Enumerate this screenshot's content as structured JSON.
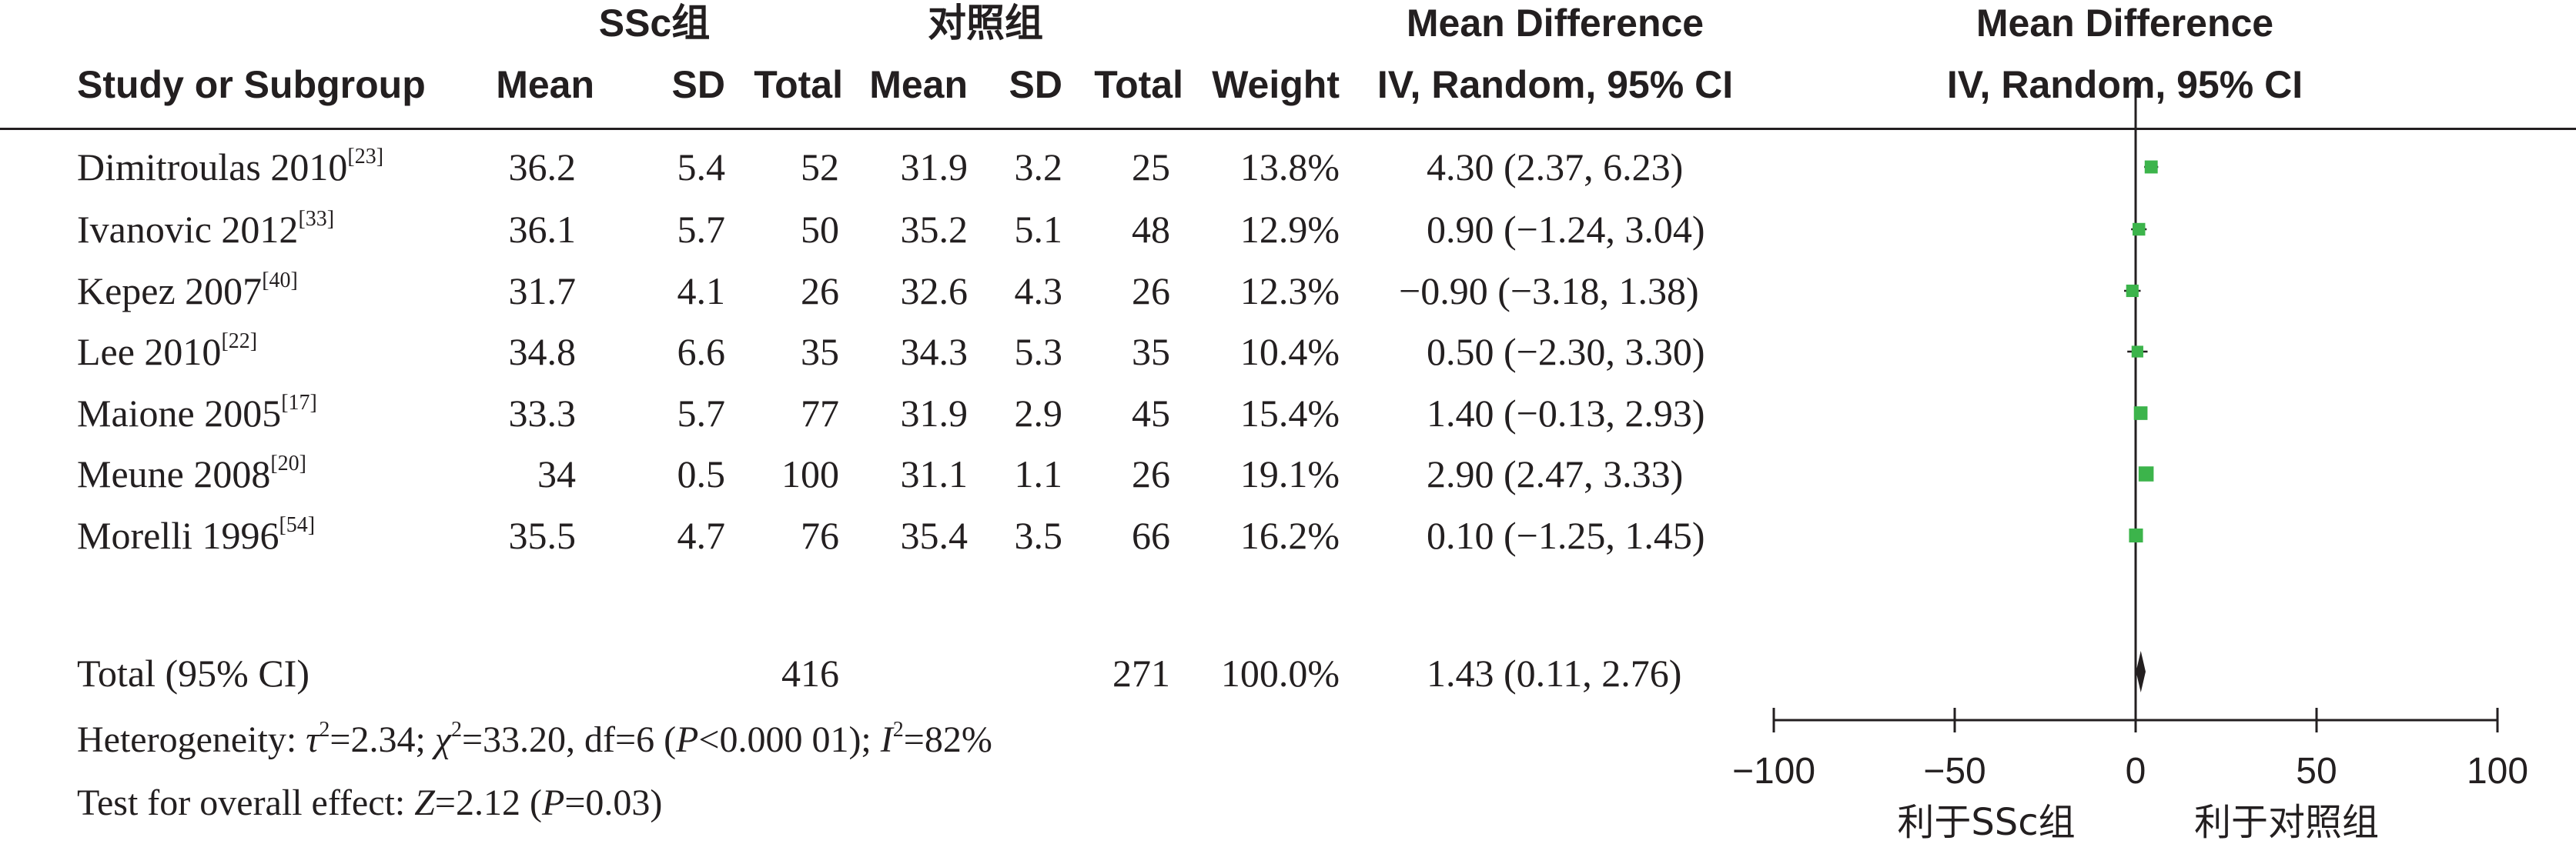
{
  "headers": {
    "group1": "SSc组",
    "group2": "对照组",
    "md_title": "Mean Difference",
    "md_method": "IV, Random, 95% CI",
    "plot_title": "Mean Difference",
    "plot_method": "IV, Random, 95% CI",
    "study": "Study or Subgroup",
    "mean1": "Mean",
    "sd1": "SD",
    "total1": "Total",
    "mean2": "Mean",
    "sd2": "SD",
    "total2": "Total",
    "weight": "Weight"
  },
  "studies": [
    {
      "name": "Dimitroulas 2010",
      "ref": "[23]",
      "mean1": "36.2",
      "sd1": "5.4",
      "total1": "52",
      "mean2": "31.9",
      "sd2": "3.2",
      "total2": "25",
      "weight": "13.8%",
      "ci": "4.30 (2.37, 6.23)"
    },
    {
      "name": "Ivanovic 2012",
      "ref": "[33]",
      "mean1": "36.1",
      "sd1": "5.7",
      "total1": "50",
      "mean2": "35.2",
      "sd2": "5.1",
      "total2": "48",
      "weight": "12.9%",
      "ci": "0.90 (−1.24, 3.04)"
    },
    {
      "name": "Kepez 2007",
      "ref": "[40]",
      "mean1": "31.7",
      "sd1": "4.1",
      "total1": "26",
      "mean2": "32.6",
      "sd2": "4.3",
      "total2": "26",
      "weight": "12.3%",
      "ci": "−0.90 (−3.18, 1.38)"
    },
    {
      "name": "Lee 2010",
      "ref": "[22]",
      "mean1": "34.8",
      "sd1": "6.6",
      "total1": "35",
      "mean2": "34.3",
      "sd2": "5.3",
      "total2": "35",
      "weight": "10.4%",
      "ci": "0.50 (−2.30, 3.30)"
    },
    {
      "name": "Maione 2005",
      "ref": "[17]",
      "mean1": "33.3",
      "sd1": "5.7",
      "total1": "77",
      "mean2": "31.9",
      "sd2": "2.9",
      "total2": "45",
      "weight": "15.4%",
      "ci": "1.40 (−0.13, 2.93)"
    },
    {
      "name": "Meune 2008",
      "ref": "[20]",
      "mean1": "34",
      "sd1": "0.5",
      "total1": "100",
      "mean2": "31.1",
      "sd2": "1.1",
      "total2": "26",
      "weight": "19.1%",
      "ci": "2.90 (2.47, 3.33)"
    },
    {
      "name": "Morelli 1996",
      "ref": "[54]",
      "mean1": "35.5",
      "sd1": "4.7",
      "total1": "76",
      "mean2": "35.4",
      "sd2": "3.5",
      "total2": "66",
      "weight": "16.2%",
      "ci": "0.10 (−1.25, 1.45)"
    }
  ],
  "total": {
    "label": "Total (95% CI)",
    "total1": "416",
    "total2": "271",
    "weight": "100.0%",
    "ci": "1.43 (0.11, 2.76)"
  },
  "heterogeneity": {
    "label": "Heterogeneity: ",
    "tau2": "=2.34; ",
    "chi2": "=33.20, df=6 (",
    "p": "<0.000 01); ",
    "i2": "=82%"
  },
  "overall": {
    "label": "Test for overall effect: ",
    "z": "=2.12 (",
    "p": "=0.03)"
  },
  "favours": {
    "left": "利于SSc组",
    "right": "利于对照组"
  },
  "colors": {
    "square": "#3cb44b",
    "text": "#231f20"
  },
  "chart_data": {
    "type": "forest",
    "xlim": [
      -100,
      100
    ],
    "xticks": [
      -100,
      -50,
      0,
      50,
      100
    ],
    "xtick_labels": [
      "−100",
      "−50",
      "0",
      "50",
      "100"
    ],
    "points": [
      {
        "study": "Dimitroulas 2010",
        "md": 4.3,
        "lo": 2.37,
        "hi": 6.23,
        "weight": 13.8
      },
      {
        "study": "Ivanovic 2012",
        "md": 0.9,
        "lo": -1.24,
        "hi": 3.04,
        "weight": 12.9
      },
      {
        "study": "Kepez 2007",
        "md": -0.9,
        "lo": -3.18,
        "hi": 1.38,
        "weight": 12.3
      },
      {
        "study": "Lee 2010",
        "md": 0.5,
        "lo": -2.3,
        "hi": 3.3,
        "weight": 10.4
      },
      {
        "study": "Maione 2005",
        "md": 1.4,
        "lo": -0.13,
        "hi": 2.93,
        "weight": 15.4
      },
      {
        "study": "Meune 2008",
        "md": 2.9,
        "lo": 2.47,
        "hi": 3.33,
        "weight": 19.1
      },
      {
        "study": "Morelli 1996",
        "md": 0.1,
        "lo": -1.25,
        "hi": 1.45,
        "weight": 16.2
      }
    ],
    "pooled": {
      "md": 1.43,
      "lo": 0.11,
      "hi": 2.76
    }
  }
}
